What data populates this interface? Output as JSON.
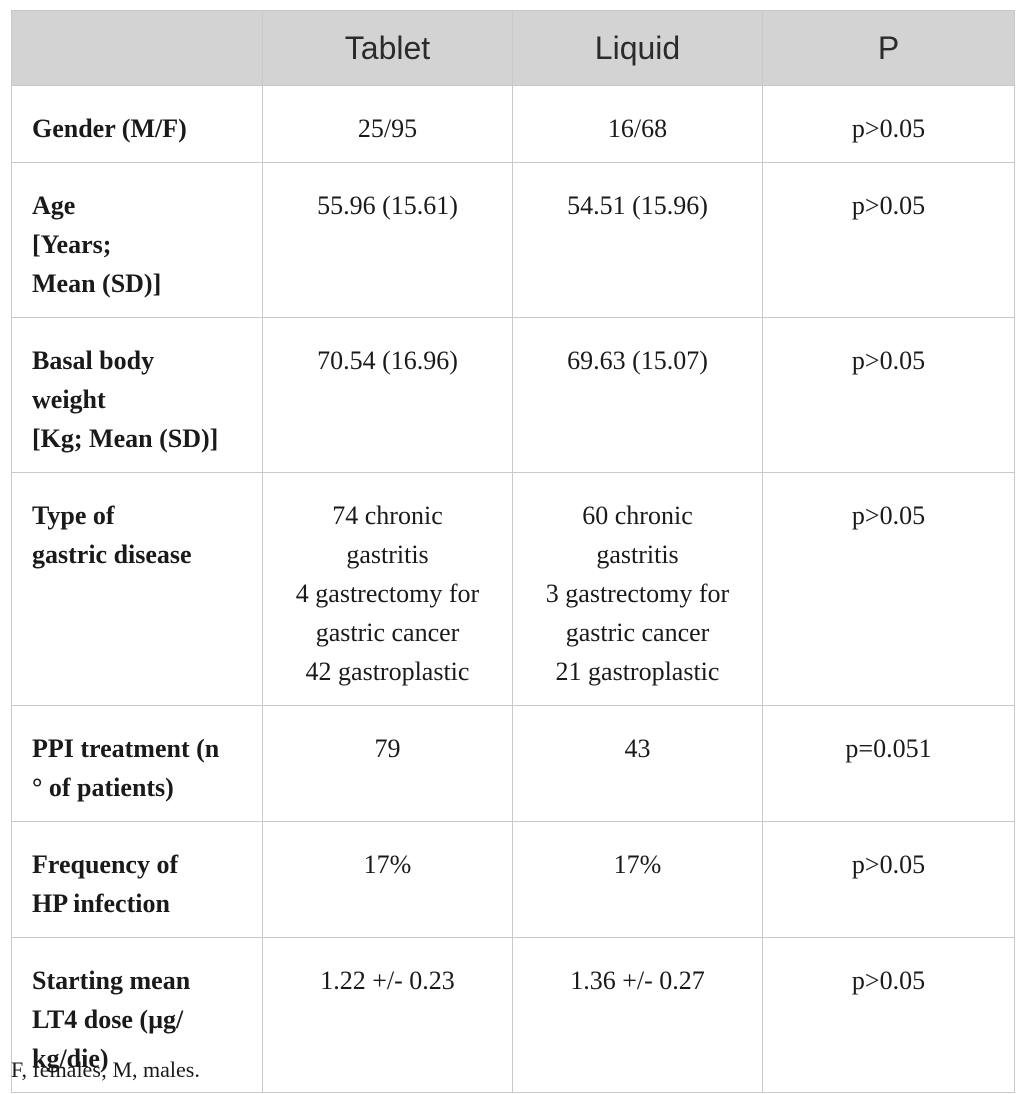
{
  "table": {
    "headers": [
      "",
      "Tablet",
      "Liquid",
      "P"
    ],
    "rows": [
      {
        "label": [
          "Gender (M/F)"
        ],
        "tablet": [
          "25/95"
        ],
        "liquid": [
          "16/68"
        ],
        "p": [
          "p>0.05"
        ]
      },
      {
        "label": [
          "Age",
          "[Years;",
          "Mean (SD)]"
        ],
        "tablet": [
          "55.96 (15.61)"
        ],
        "liquid": [
          "54.51 (15.96)"
        ],
        "p": [
          "p>0.05"
        ]
      },
      {
        "label": [
          "Basal body",
          "weight",
          "[Kg; Mean (SD)]"
        ],
        "tablet": [
          "70.54 (16.96)"
        ],
        "liquid": [
          "69.63 (15.07)"
        ],
        "p": [
          "p>0.05"
        ]
      },
      {
        "label": [
          "Type of",
          "gastric disease"
        ],
        "tablet": [
          "74 chronic",
          "gastritis",
          "4 gastrectomy for",
          "gastric cancer",
          "42 gastroplastic"
        ],
        "liquid": [
          "60 chronic",
          "gastritis",
          "3 gastrectomy for",
          "gastric cancer",
          "21 gastroplastic"
        ],
        "p": [
          "p>0.05"
        ]
      },
      {
        "label": [
          "PPI treatment (n",
          "° of patients)"
        ],
        "tablet": [
          "79"
        ],
        "liquid": [
          "43"
        ],
        "p": [
          "p=0.051"
        ]
      },
      {
        "label": [
          "Frequency of",
          "HP infection"
        ],
        "tablet": [
          "17%"
        ],
        "liquid": [
          "17%"
        ],
        "p": [
          "p>0.05"
        ]
      },
      {
        "label": [
          "Starting mean",
          "LT4 dose (µg/",
          "kg/die)"
        ],
        "tablet": [
          "1.22 +/- 0.23"
        ],
        "liquid": [
          "1.36 +/- 0.27"
        ],
        "p": [
          "p>0.05"
        ]
      }
    ]
  },
  "footnote": "F, females; M, males."
}
